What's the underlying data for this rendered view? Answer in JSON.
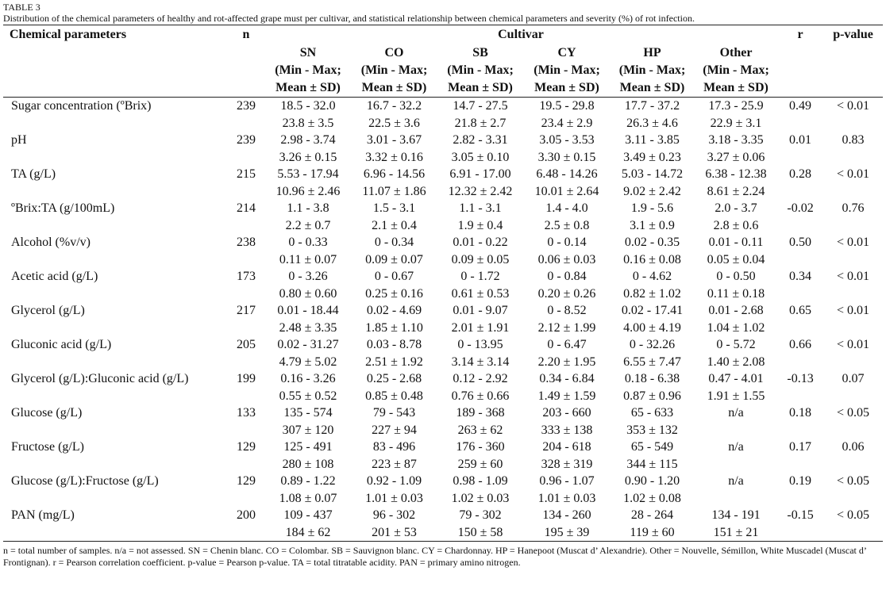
{
  "label": "TABLE 3",
  "caption": "Distribution of the chemical parameters of healthy and rot-affected grape must per cultivar, and statistical relationship between chemical parameters and severity (%) of rot infection.",
  "headers": {
    "param": "Chemical parameters",
    "n": "n",
    "cultivar": "Cultivar",
    "r": "r",
    "p": "p-value"
  },
  "cultivars": [
    {
      "code": "SN",
      "l1": "(Min - Max;",
      "l2": "Mean ± SD)"
    },
    {
      "code": "CO",
      "l1": "(Min - Max;",
      "l2": "Mean ± SD)"
    },
    {
      "code": "SB",
      "l1": "(Min - Max;",
      "l2": "Mean ± SD)"
    },
    {
      "code": "CY",
      "l1": "(Min - Max;",
      "l2": "Mean ± SD)"
    },
    {
      "code": "HP",
      "l1": "(Min - Max;",
      "l2": "Mean ± SD)"
    },
    {
      "code": "Other",
      "l1": "(Min - Max;",
      "l2": "Mean ± SD)"
    }
  ],
  "rows": [
    {
      "param": "Sugar concentration (ºBrix)",
      "n": "239",
      "range": [
        "18.5 - 32.0",
        "16.7 - 32.2",
        "14.7 - 27.5",
        "19.5 - 29.8",
        "17.7 - 37.2",
        "17.3 - 25.9"
      ],
      "mean": [
        "23.8 ± 3.5",
        "22.5 ± 3.6",
        "21.8 ± 2.7",
        "23.4 ± 2.9",
        "26.3 ± 4.6",
        "22.9 ± 3.1"
      ],
      "r": "0.49",
      "p": "< 0.01"
    },
    {
      "param": "pH",
      "n": "239",
      "range": [
        "2.98 - 3.74",
        "3.01 - 3.67",
        "2.82 - 3.31",
        "3.05 - 3.53",
        "3.11 - 3.85",
        "3.18 - 3.35"
      ],
      "mean": [
        "3.26 ± 0.15",
        "3.32 ± 0.16",
        "3.05 ± 0.10",
        "3.30 ± 0.15",
        "3.49 ± 0.23",
        "3.27 ± 0.06"
      ],
      "r": "0.01",
      "p": "0.83"
    },
    {
      "param": "TA (g/L)",
      "n": "215",
      "range": [
        "5.53 - 17.94",
        "6.96 - 14.56",
        "6.91 - 17.00",
        "6.48 - 14.26",
        "5.03 - 14.72",
        "6.38 - 12.38"
      ],
      "mean": [
        "10.96 ± 2.46",
        "11.07 ± 1.86",
        "12.32 ± 2.42",
        "10.01 ± 2.64",
        "9.02 ± 2.42",
        "8.61 ± 2.24"
      ],
      "r": "0.28",
      "p": "< 0.01"
    },
    {
      "param": "ºBrix:TA (g/100mL)",
      "n": "214",
      "range": [
        "1.1 - 3.8",
        "1.5 - 3.1",
        "1.1 - 3.1",
        "1.4 - 4.0",
        "1.9 - 5.6",
        "2.0 - 3.7"
      ],
      "mean": [
        "2.2 ± 0.7",
        "2.1 ± 0.4",
        "1.9 ± 0.4",
        "2.5 ± 0.8",
        "3.1 ± 0.9",
        "2.8 ± 0.6"
      ],
      "r": "-0.02",
      "p": "0.76"
    },
    {
      "param": "Alcohol (%v/v)",
      "n": "238",
      "range": [
        "0 - 0.33",
        "0 - 0.34",
        "0.01 - 0.22",
        "0 - 0.14",
        "0.02 - 0.35",
        "0.01 - 0.11"
      ],
      "mean": [
        "0.11 ± 0.07",
        "0.09 ± 0.07",
        "0.09 ± 0.05",
        "0.06 ± 0.03",
        "0.16 ± 0.08",
        "0.05 ± 0.04"
      ],
      "r": "0.50",
      "p": "< 0.01"
    },
    {
      "param": "Acetic acid (g/L)",
      "n": "173",
      "range": [
        "0 - 3.26",
        "0 - 0.67",
        "0 - 1.72",
        "0 - 0.84",
        "0 - 4.62",
        "0 - 0.50"
      ],
      "mean": [
        "0.80 ± 0.60",
        "0.25 ± 0.16",
        "0.61 ± 0.53",
        "0.20 ± 0.26",
        "0.82 ± 1.02",
        "0.11 ± 0.18"
      ],
      "r": "0.34",
      "p": "< 0.01"
    },
    {
      "param": "Glycerol (g/L)",
      "n": "217",
      "range": [
        "0.01 - 18.44",
        "0.02 - 4.69",
        "0.01 - 9.07",
        "0 - 8.52",
        "0.02 - 17.41",
        "0.01 - 2.68"
      ],
      "mean": [
        "2.48 ± 3.35",
        "1.85 ± 1.10",
        "2.01 ± 1.91",
        "2.12 ± 1.99",
        "4.00 ± 4.19",
        "1.04 ± 1.02"
      ],
      "r": "0.65",
      "p": "< 0.01"
    },
    {
      "param": "Gluconic acid (g/L)",
      "n": "205",
      "range": [
        "0.02 - 31.27",
        "0.03 - 8.78",
        "0 - 13.95",
        "0 - 6.47",
        "0 - 32.26",
        "0 - 5.72"
      ],
      "mean": [
        "4.79 ± 5.02",
        "2.51 ± 1.92",
        "3.14 ± 3.14",
        "2.20 ± 1.95",
        "6.55 ± 7.47",
        "1.40 ± 2.08"
      ],
      "r": "0.66",
      "p": "< 0.01"
    },
    {
      "param": "Glycerol (g/L):Gluconic acid (g/L)",
      "n": "199",
      "range": [
        "0.16 - 3.26",
        "0.25 - 2.68",
        "0.12 - 2.92",
        "0.34 - 6.84",
        "0.18 - 6.38",
        "0.47 - 4.01"
      ],
      "mean": [
        "0.55 ± 0.52",
        "0.85 ± 0.48",
        "0.76 ± 0.66",
        "1.49 ± 1.59",
        "0.87 ± 0.96",
        "1.91 ± 1.55"
      ],
      "r": "-0.13",
      "p": "0.07"
    },
    {
      "param": "Glucose (g/L)",
      "n": "133",
      "range": [
        "135 - 574",
        "79 - 543",
        "189 - 368",
        "203 - 660",
        "65 - 633",
        "n/a"
      ],
      "mean": [
        "307 ± 120",
        "227 ± 94",
        "263 ± 62",
        "333 ± 138",
        "353 ± 132",
        ""
      ],
      "r": "0.18",
      "p": "< 0.05"
    },
    {
      "param": "Fructose (g/L)",
      "n": "129",
      "range": [
        "125 - 491",
        "83 - 496",
        "176 - 360",
        "204 - 618",
        "65 - 549",
        "n/a"
      ],
      "mean": [
        "280 ± 108",
        "223 ± 87",
        "259 ± 60",
        "328 ± 319",
        "344 ± 115",
        ""
      ],
      "r": "0.17",
      "p": "0.06"
    },
    {
      "param": "Glucose (g/L):Fructose (g/L)",
      "n": "129",
      "range": [
        "0.89 - 1.22",
        "0.92 - 1.09",
        "0.98 - 1.09",
        "0.96 - 1.07",
        "0.90 - 1.20",
        "n/a"
      ],
      "mean": [
        "1.08 ± 0.07",
        "1.01 ± 0.03",
        "1.02 ± 0.03",
        "1.01 ± 0.03",
        "1.02 ± 0.08",
        ""
      ],
      "r": "0.19",
      "p": "< 0.05"
    },
    {
      "param": "PAN (mg/L)",
      "n": "200",
      "range": [
        "109 - 437",
        "96 - 302",
        "79 - 302",
        "134 - 260",
        "28 - 264",
        "134 - 191"
      ],
      "mean": [
        "184 ± 62",
        "201 ± 53",
        "150 ± 58",
        "195 ± 39",
        "119 ± 60",
        "151 ± 21"
      ],
      "r": "-0.15",
      "p": "< 0.05"
    }
  ],
  "footnote": "n = total number of samples. n/a = not assessed. SN = Chenin blanc. CO = Colombar. SB = Sauvignon blanc. CY = Chardonnay. HP = Hanepoot (Muscat d’ Alexandrie). Other = Nouvelle, Sémillon, White Muscadel (Muscat d’ Frontignan). r = Pearson correlation coefficient. p-value = Pearson p-value. TA = total titratable acidity. PAN = primary amino nitrogen."
}
